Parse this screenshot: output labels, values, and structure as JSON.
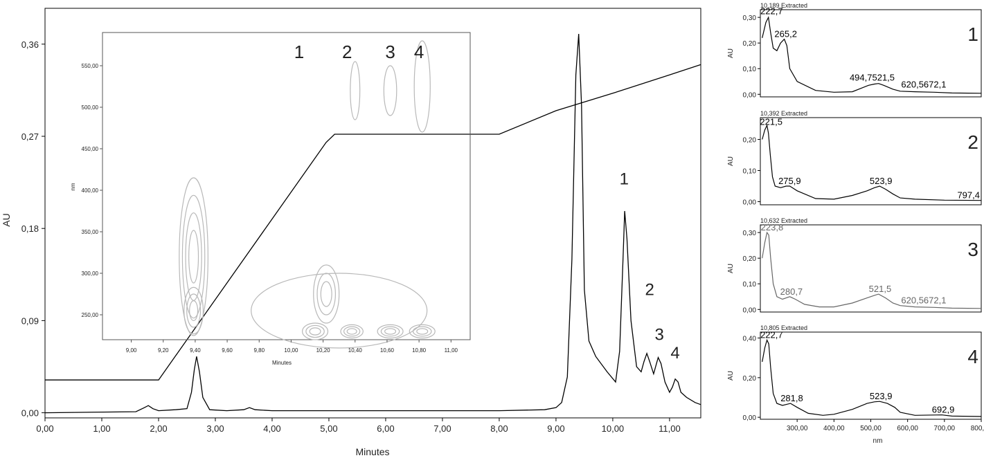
{
  "chart_data": [
    {
      "type": "line",
      "xlabel": "Minutes",
      "ylabel": "AU",
      "xlim": [
        0,
        11.55
      ],
      "ylim": [
        -0.005,
        0.395
      ],
      "xticks": [
        "0,00",
        "1,00",
        "2,00",
        "3,00",
        "4,00",
        "5,00",
        "6,00",
        "7,00",
        "8,00",
        "9,00",
        "10,00",
        "11,00"
      ],
      "yticks": [
        "0,00",
        "0,09",
        "0,18",
        "0,27",
        "0,36"
      ],
      "peak_labels": [
        {
          "text": "1",
          "x": 10.2,
          "y": 0.223
        },
        {
          "text": "2",
          "x": 10.65,
          "y": 0.115
        },
        {
          "text": "3",
          "x": 10.82,
          "y": 0.071
        },
        {
          "text": "4",
          "x": 11.1,
          "y": 0.053
        }
      ],
      "series": [
        {
          "values_x": [
            0.0,
            1.6,
            1.75,
            1.82,
            1.9,
            2.0,
            2.3,
            2.5,
            2.58,
            2.63,
            2.67,
            2.72,
            2.78,
            2.9,
            3.2,
            3.5,
            3.6,
            3.7,
            4.0,
            5.0,
            6.0,
            7.0,
            8.0,
            8.8,
            9.0,
            9.1,
            9.2,
            9.28,
            9.35,
            9.4,
            9.45,
            9.5,
            9.58,
            9.7,
            9.9,
            10.05,
            10.12,
            10.18,
            10.21,
            10.25,
            10.32,
            10.42,
            10.5,
            10.55,
            10.6,
            10.65,
            10.72,
            10.77,
            10.8,
            10.85,
            10.92,
            11.0,
            11.05,
            11.1,
            11.15,
            11.2,
            11.3,
            11.45,
            11.55
          ],
          "values_y": [
            0.0,
            0.001,
            0.005,
            0.007,
            0.004,
            0.002,
            0.003,
            0.004,
            0.02,
            0.042,
            0.055,
            0.04,
            0.015,
            0.003,
            0.002,
            0.003,
            0.005,
            0.003,
            0.002,
            0.002,
            0.002,
            0.002,
            0.002,
            0.003,
            0.005,
            0.01,
            0.035,
            0.15,
            0.33,
            0.37,
            0.3,
            0.12,
            0.07,
            0.055,
            0.04,
            0.03,
            0.06,
            0.15,
            0.197,
            0.17,
            0.09,
            0.045,
            0.04,
            0.05,
            0.058,
            0.05,
            0.038,
            0.048,
            0.054,
            0.048,
            0.03,
            0.02,
            0.025,
            0.033,
            0.03,
            0.02,
            0.015,
            0.01,
            0.008
          ]
        },
        {
          "values_x": [
            0.0,
            2.0,
            4.95,
            5.1,
            8.0,
            9.0,
            10.0,
            11.0,
            11.55
          ],
          "values_y": [
            0.032,
            0.032,
            0.264,
            0.272,
            0.272,
            0.295,
            0.312,
            0.33,
            0.34
          ]
        }
      ]
    },
    {
      "type": "heatmap",
      "xlabel": "Minutes",
      "ylabel": "nm",
      "xlim": [
        8.82,
        11.12
      ],
      "ylim": [
        220,
        590
      ],
      "xticks": [
        "9,00",
        "9,20",
        "9,40",
        "9,60",
        "9,80",
        "10,00",
        "10,20",
        "10,40",
        "10,60",
        "10,80",
        "11,00"
      ],
      "yticks": [
        "250,00",
        "300,00",
        "350,00",
        "400,00",
        "450,00",
        "500,00",
        "550,00"
      ],
      "peak_labels": [
        {
          "text": "1",
          "x": 10.05
        },
        {
          "text": "2",
          "x": 10.35
        },
        {
          "text": "3",
          "x": 10.62
        },
        {
          "text": "4",
          "x": 10.8
        }
      ],
      "blobs": [
        {
          "x": 9.39,
          "y": 320,
          "rx": 0.09,
          "ry": 95,
          "rings": 4
        },
        {
          "x": 9.39,
          "y": 255,
          "rx": 0.06,
          "ry": 28,
          "rings": 3
        },
        {
          "x": 10.22,
          "y": 275,
          "rx": 0.08,
          "ry": 35,
          "rings": 3
        },
        {
          "x": 10.15,
          "y": 230,
          "rx": 0.08,
          "ry": 10,
          "rings": 3
        },
        {
          "x": 10.38,
          "y": 230,
          "rx": 0.07,
          "ry": 8,
          "rings": 3
        },
        {
          "x": 10.62,
          "y": 230,
          "rx": 0.08,
          "ry": 8,
          "rings": 3
        },
        {
          "x": 10.82,
          "y": 230,
          "rx": 0.08,
          "ry": 8,
          "rings": 3
        },
        {
          "x": 10.4,
          "y": 520,
          "rx": 0.03,
          "ry": 35,
          "rings": 1
        },
        {
          "x": 10.62,
          "y": 520,
          "rx": 0.04,
          "ry": 30,
          "rings": 1
        },
        {
          "x": 10.82,
          "y": 525,
          "rx": 0.05,
          "ry": 55,
          "rings": 1
        },
        {
          "x": 10.3,
          "y": 255,
          "rx": 0.55,
          "ry": 45,
          "rings": 1
        }
      ]
    },
    {
      "type": "line",
      "panel": "1",
      "subtitle": "10,189 Extracted",
      "ylabel": "AU",
      "xlim": [
        200,
        800
      ],
      "ylim": [
        -0.01,
        0.33
      ],
      "yticks": [
        "0,00",
        "0,10",
        "0,20",
        "0,30"
      ],
      "peak_labels": [
        {
          "text": "222,7",
          "x": 222.7,
          "y": 0.305
        },
        {
          "text": "265,2",
          "x": 265.2,
          "y": 0.215
        },
        {
          "text": "494,7521,5",
          "x": 500,
          "y": 0.045
        },
        {
          "text": "620,5672,1",
          "x": 640,
          "y": 0.018
        }
      ],
      "x": [
        205,
        215,
        222,
        228,
        235,
        245,
        255,
        265,
        272,
        280,
        300,
        350,
        400,
        450,
        494,
        510,
        521,
        535,
        560,
        580,
        620,
        672,
        720,
        800
      ],
      "y": [
        0.22,
        0.28,
        0.3,
        0.24,
        0.18,
        0.17,
        0.2,
        0.215,
        0.19,
        0.1,
        0.05,
        0.015,
        0.008,
        0.01,
        0.035,
        0.04,
        0.042,
        0.035,
        0.02,
        0.012,
        0.01,
        0.008,
        0.005,
        0.004
      ]
    },
    {
      "type": "line",
      "panel": "2",
      "subtitle": "10,392 Extracted",
      "ylabel": "AU",
      "xlim": [
        200,
        800
      ],
      "ylim": [
        -0.01,
        0.27
      ],
      "yticks": [
        "0,00",
        "0,10",
        "0,20"
      ],
      "peak_labels": [
        {
          "text": "221,5",
          "x": 221.5,
          "y": 0.24
        },
        {
          "text": "275,9",
          "x": 275.9,
          "y": 0.05
        },
        {
          "text": "523,9",
          "x": 523.9,
          "y": 0.05
        },
        {
          "text": "797,4",
          "x": 797.4,
          "y": 0.005
        }
      ],
      "x": [
        205,
        212,
        218,
        222,
        227,
        233,
        240,
        255,
        270,
        280,
        300,
        350,
        400,
        450,
        490,
        510,
        524,
        540,
        560,
        580,
        620,
        700,
        800
      ],
      "y": [
        0.2,
        0.23,
        0.245,
        0.22,
        0.15,
        0.08,
        0.05,
        0.045,
        0.05,
        0.05,
        0.035,
        0.01,
        0.008,
        0.02,
        0.035,
        0.045,
        0.05,
        0.04,
        0.025,
        0.012,
        0.008,
        0.005,
        0.004
      ]
    },
    {
      "type": "line",
      "panel": "3",
      "subtitle": "10,632 Extracted",
      "ylabel": "AU",
      "xlim": [
        200,
        800
      ],
      "ylim": [
        -0.01,
        0.33
      ],
      "yticks": [
        "0,00",
        "0,10",
        "0,20",
        "0,30"
      ],
      "peak_labels": [
        {
          "text": "223,8",
          "x": 223.8,
          "y": 0.3
        },
        {
          "text": "280,7",
          "x": 280.7,
          "y": 0.05
        },
        {
          "text": "521,5",
          "x": 521.5,
          "y": 0.06
        },
        {
          "text": "620,5672,1",
          "x": 640,
          "y": 0.015
        }
      ],
      "x": [
        205,
        212,
        218,
        223,
        228,
        235,
        245,
        260,
        280,
        295,
        320,
        360,
        400,
        450,
        490,
        510,
        521,
        540,
        560,
        580,
        620,
        672,
        720,
        800
      ],
      "y": [
        0.2,
        0.26,
        0.3,
        0.29,
        0.2,
        0.1,
        0.05,
        0.04,
        0.05,
        0.04,
        0.02,
        0.01,
        0.01,
        0.025,
        0.045,
        0.055,
        0.06,
        0.045,
        0.025,
        0.015,
        0.01,
        0.008,
        0.005,
        0.004
      ]
    },
    {
      "type": "line",
      "panel": "4",
      "subtitle": "10,805 Extracted",
      "ylabel": "AU",
      "xlim": [
        200,
        800
      ],
      "ylim": [
        -0.01,
        0.43
      ],
      "yticks": [
        "0,00",
        "0,20",
        "0,40"
      ],
      "xticks": [
        "300,00",
        "400,00",
        "500,00",
        "600,00",
        "700,00",
        "800,00"
      ],
      "xlabel": "nm",
      "peak_labels": [
        {
          "text": "222,7",
          "x": 222.7,
          "y": 0.39
        },
        {
          "text": "281,8",
          "x": 281.8,
          "y": 0.07
        },
        {
          "text": "523,9",
          "x": 523.9,
          "y": 0.08
        },
        {
          "text": "692,9",
          "x": 692.9,
          "y": 0.012
        }
      ],
      "x": [
        205,
        212,
        218,
        223,
        228,
        235,
        245,
        260,
        282,
        300,
        330,
        370,
        400,
        450,
        490,
        510,
        524,
        545,
        565,
        580,
        620,
        693,
        720,
        800
      ],
      "y": [
        0.28,
        0.35,
        0.39,
        0.37,
        0.25,
        0.12,
        0.07,
        0.06,
        0.07,
        0.05,
        0.02,
        0.01,
        0.015,
        0.04,
        0.07,
        0.078,
        0.08,
        0.07,
        0.05,
        0.025,
        0.01,
        0.012,
        0.006,
        0.004
      ]
    }
  ]
}
